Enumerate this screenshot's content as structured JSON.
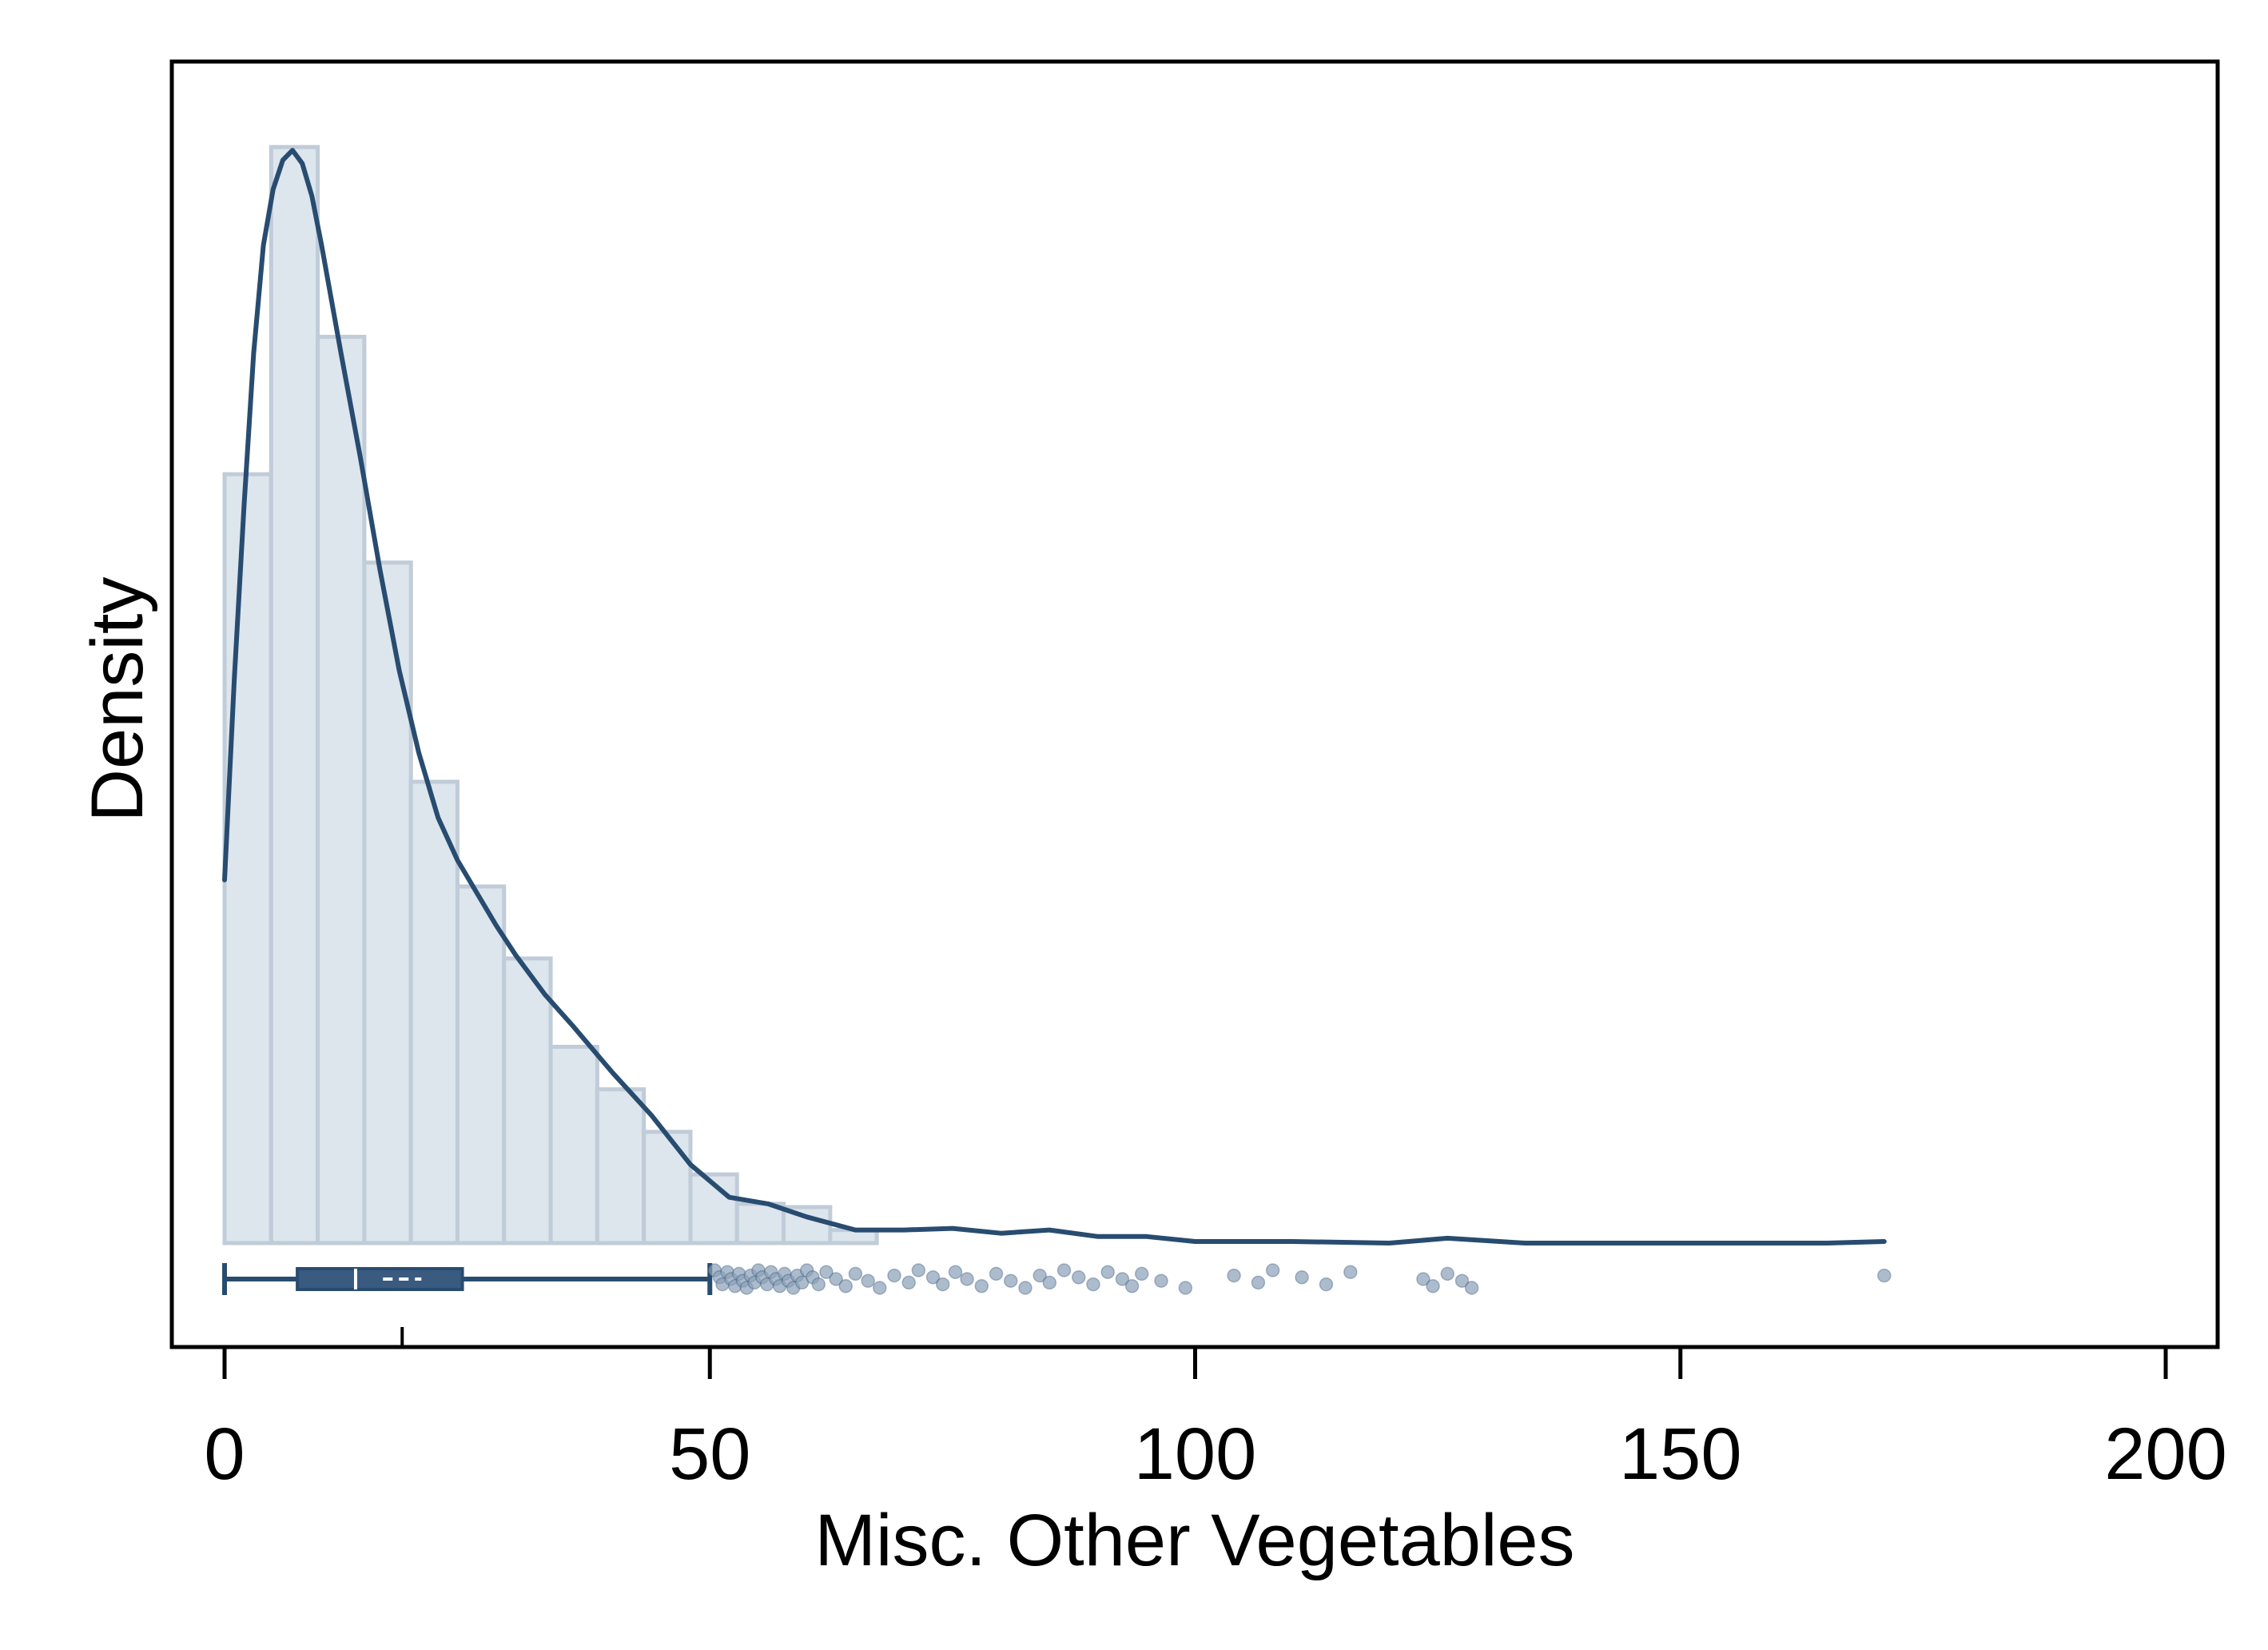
{
  "chart_data": {
    "type": "histogram",
    "xlabel": "Misc. Other Vegetables",
    "ylabel": "Density",
    "xlim": [
      -5,
      206
    ],
    "x_ticks": [
      {
        "value": 0,
        "label": "0"
      },
      {
        "value": 50,
        "label": "50"
      },
      {
        "value": 100,
        "label": "100"
      },
      {
        "value": 150,
        "label": "150"
      },
      {
        "value": 200,
        "label": "200"
      }
    ],
    "y_ticks_shown": false,
    "grid": false,
    "legend": "none",
    "histogram": {
      "bin_width": 4.8,
      "bin_start": 0,
      "densities": [
        0.0235,
        0.0335,
        0.0277,
        0.0208,
        0.0141,
        0.0109,
        0.0087,
        0.006,
        0.0047,
        0.0034,
        0.0021,
        0.0012,
        0.0011,
        0.0004
      ]
    },
    "density_curve": {
      "x": [
        0,
        1,
        2,
        3,
        4,
        5,
        6,
        7,
        8,
        9,
        10,
        12,
        14,
        16,
        18,
        20,
        22,
        24,
        26,
        28,
        30,
        33,
        36,
        40,
        44,
        48,
        52,
        56,
        60,
        65,
        70,
        75,
        80,
        85,
        90,
        95,
        100,
        110,
        120,
        126,
        134,
        150,
        165,
        171
      ],
      "y": [
        0.0111,
        0.0172,
        0.0225,
        0.0272,
        0.0305,
        0.0322,
        0.0331,
        0.0334,
        0.033,
        0.032,
        0.0305,
        0.0272,
        0.024,
        0.0206,
        0.0175,
        0.015,
        0.013,
        0.0117,
        0.0107,
        0.0097,
        0.0088,
        0.0076,
        0.0066,
        0.0052,
        0.0039,
        0.0024,
        0.0014,
        0.0012,
        0.0008,
        0.0004,
        0.0004,
        0.00045,
        0.0003,
        0.0004,
        0.0002,
        0.0002,
        5e-05,
        5e-05,
        0.0,
        0.00015,
        0.0,
        0.0,
        0.0,
        5e-05
      ]
    },
    "ylim": [
      0,
      0.0345
    ],
    "boxplot": {
      "whisker_low": 0,
      "q1": 7.5,
      "median": 13.5,
      "mean": 18.3,
      "q3": 24.5,
      "whisker_high": 50,
      "outliers": [
        50.5,
        51,
        51.3,
        51.8,
        52.2,
        52.6,
        53,
        53.4,
        53.8,
        54.2,
        54.6,
        55,
        55.4,
        55.9,
        56.3,
        56.8,
        57.2,
        57.7,
        58.1,
        58.6,
        59,
        59.5,
        60,
        60.6,
        61.2,
        62,
        63,
        64,
        65,
        66.3,
        67.5,
        69,
        70.5,
        71.5,
        73,
        74,
        75.3,
        76.5,
        78,
        79.5,
        81,
        82.5,
        84,
        85,
        86.5,
        88,
        89.5,
        91,
        92.5,
        93.5,
        94.5,
        96.5,
        99,
        104,
        106.5,
        108,
        111,
        113.5,
        116,
        123.5,
        124.5,
        126,
        127.5,
        128.5,
        171
      ]
    },
    "colors": {
      "histogram_fill": "#dde5ed",
      "histogram_edge": "#c0ccd8",
      "curve": "#284c70",
      "box": "#3a5a80",
      "outlier": "#8aa0b8"
    }
  }
}
